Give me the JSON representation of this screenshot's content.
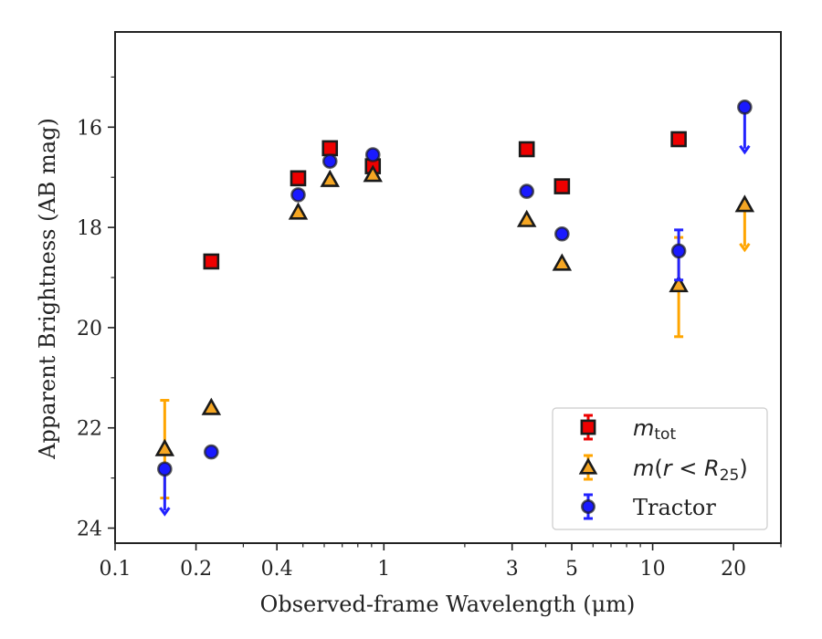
{
  "chart_data": {
    "type": "scatter",
    "xlabel": "Observed-frame Wavelength (μm)",
    "ylabel": "Apparent Brightness (AB mag)",
    "x_scale": "log",
    "xlim": [
      0.1,
      30
    ],
    "ylim": [
      24.3,
      14.1
    ],
    "y_inverted": true,
    "x_tick_labels": [
      {
        "value": 0.1,
        "label": "0.1"
      },
      {
        "value": 0.2,
        "label": "0.2"
      },
      {
        "value": 0.4,
        "label": "0.4"
      },
      {
        "value": 1,
        "label": "1"
      },
      {
        "value": 3,
        "label": "3"
      },
      {
        "value": 5,
        "label": "5"
      },
      {
        "value": 10,
        "label": "10"
      },
      {
        "value": 20,
        "label": "20"
      }
    ],
    "x_minor_ticks": [
      0.3,
      0.5,
      0.6,
      0.7,
      0.8,
      0.9,
      2,
      4,
      6,
      7,
      8,
      9,
      30
    ],
    "y_ticks": [
      16,
      18,
      20,
      22,
      24
    ],
    "y_minor_ticks": [
      15,
      17,
      19,
      21,
      23
    ],
    "legend_position": "lower-right",
    "series": [
      {
        "name": "m_tot",
        "marker": "square",
        "fill": "#ee0000",
        "errorbar_color": "#ee0000",
        "points": [
          {
            "x": 0.228,
            "y": 18.68
          },
          {
            "x": 0.48,
            "y": 17.02
          },
          {
            "x": 0.63,
            "y": 16.42
          },
          {
            "x": 0.91,
            "y": 16.78
          },
          {
            "x": 3.4,
            "y": 16.44
          },
          {
            "x": 4.6,
            "y": 17.18
          },
          {
            "x": 12.5,
            "y": 16.24
          }
        ]
      },
      {
        "name": "m(r < R25)",
        "marker": "triangle",
        "fill": "#f5a623",
        "errorbar_color": "#ffa500",
        "points": [
          {
            "x": 0.153,
            "y": 22.42,
            "yerr_low": 21.45,
            "yerr_high": 23.4
          },
          {
            "x": 0.228,
            "y": 21.6
          },
          {
            "x": 0.48,
            "y": 17.7
          },
          {
            "x": 0.63,
            "y": 17.05
          },
          {
            "x": 0.91,
            "y": 16.95
          },
          {
            "x": 3.4,
            "y": 17.85
          },
          {
            "x": 4.6,
            "y": 18.72
          },
          {
            "x": 12.5,
            "y": 19.15,
            "yerr_low": 18.2,
            "yerr_high": 20.18
          },
          {
            "x": 22,
            "y": 17.55,
            "upper_limit_to": 18.45
          }
        ]
      },
      {
        "name": "Tractor",
        "marker": "circle",
        "fill": "#1a1aff",
        "errorbar_color": "#2222ff",
        "points": [
          {
            "x": 0.153,
            "y": 22.82,
            "upper_limit_to": 23.72
          },
          {
            "x": 0.228,
            "y": 22.48
          },
          {
            "x": 0.48,
            "y": 17.35
          },
          {
            "x": 0.63,
            "y": 16.68
          },
          {
            "x": 0.91,
            "y": 16.55
          },
          {
            "x": 3.4,
            "y": 17.28
          },
          {
            "x": 4.6,
            "y": 18.13
          },
          {
            "x": 12.5,
            "y": 18.47,
            "yerr_low": 18.05,
            "yerr_high": 19.05
          },
          {
            "x": 22,
            "y": 15.6,
            "upper_limit_to": 16.5
          }
        ]
      }
    ]
  }
}
